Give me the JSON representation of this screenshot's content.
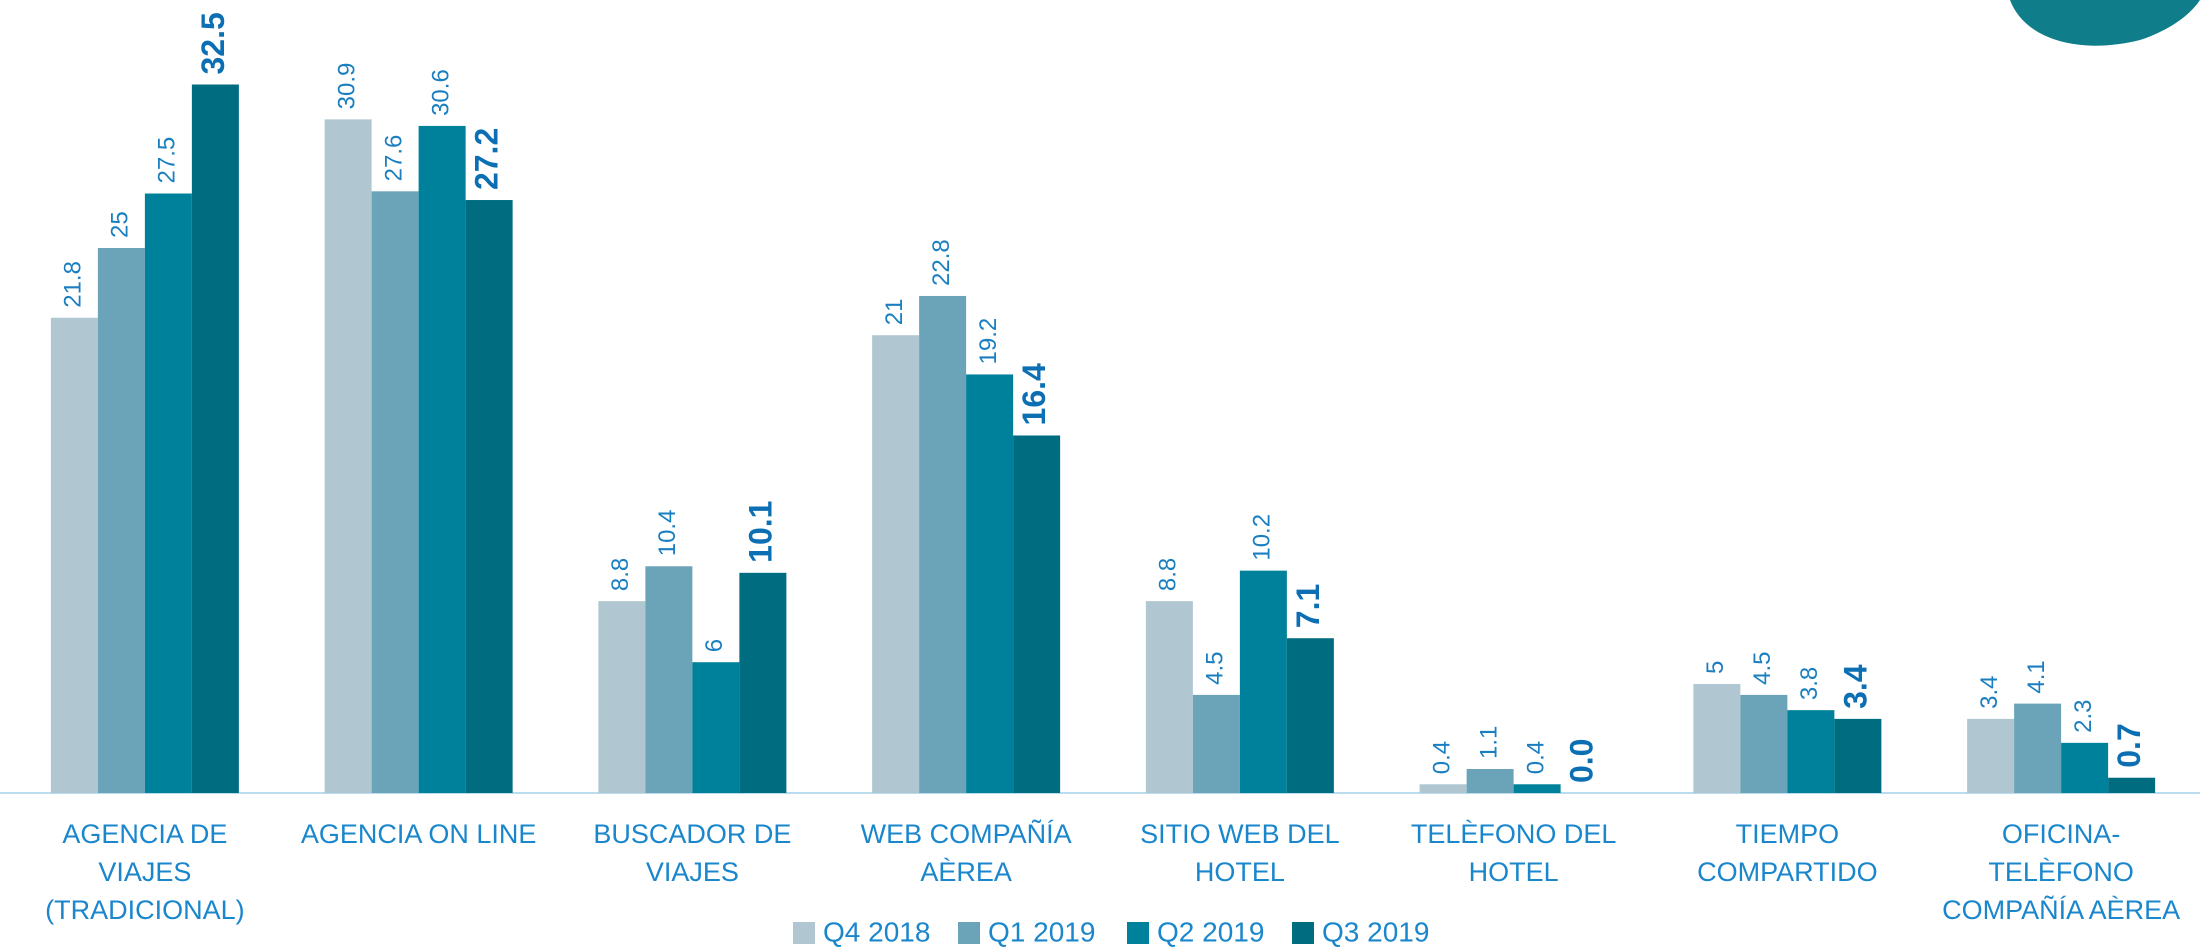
{
  "chart_data": {
    "type": "bar",
    "categories": [
      "AGENCIA DE VIAJES (TRADICIONAL)",
      "AGENCIA ON LINE",
      "BUSCADOR DE VIAJES",
      "WEB COMPAÑÍA AÈREA",
      "SITIO WEB DEL HOTEL",
      "TELÈFONO DEL HOTEL",
      "TIEMPO COMPARTIDO",
      "OFICINA-TELÈFONO COMPAÑÍA AÈREA"
    ],
    "series": [
      {
        "name": "Q4 2018",
        "color": "#b0c6d0",
        "values": [
          21.8,
          30.9,
          8.8,
          21,
          8.8,
          0.4,
          5,
          3.4
        ]
      },
      {
        "name": "Q1 2019",
        "color": "#6ba3b8",
        "values": [
          25,
          27.6,
          10.4,
          22.8,
          4.5,
          1.1,
          4.5,
          4.1
        ]
      },
      {
        "name": "Q2 2019",
        "color": "#00819b",
        "values": [
          27.5,
          30.6,
          6,
          19.2,
          10.2,
          0.4,
          3.8,
          2.3
        ]
      },
      {
        "name": "Q3 2019",
        "color": "#006c80",
        "values": [
          32.5,
          27.2,
          10.1,
          16.4,
          7.1,
          0,
          3.4,
          0.7
        ],
        "value_labels": [
          "32.5",
          "27.2",
          "10.1",
          "16.4",
          "7.1",
          "0.0",
          "3.4",
          "0.7"
        ]
      }
    ],
    "ylim": [
      0,
      35
    ],
    "legend": "bottom"
  }
}
